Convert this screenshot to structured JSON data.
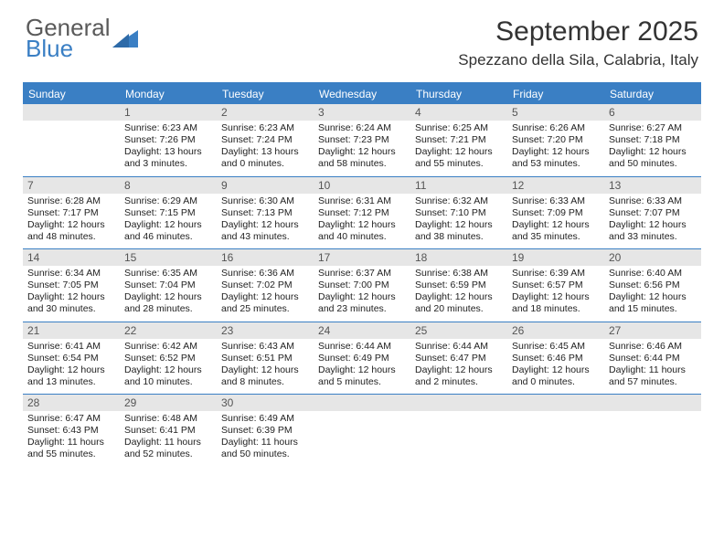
{
  "logo": {
    "word1": "General",
    "word2": "Blue"
  },
  "colors": {
    "brand_blue": "#3a7fc4",
    "header_gray": "#e6e6e6",
    "text": "#222222",
    "logo_gray": "#5a5a5a"
  },
  "title": "September 2025",
  "location": "Spezzano della Sila, Calabria, Italy",
  "weekdays": [
    "Sunday",
    "Monday",
    "Tuesday",
    "Wednesday",
    "Thursday",
    "Friday",
    "Saturday"
  ],
  "weeks": [
    [
      {
        "n": "",
        "sr": "",
        "ss": "",
        "dl": ""
      },
      {
        "n": "1",
        "sr": "Sunrise: 6:23 AM",
        "ss": "Sunset: 7:26 PM",
        "dl": "Daylight: 13 hours and 3 minutes."
      },
      {
        "n": "2",
        "sr": "Sunrise: 6:23 AM",
        "ss": "Sunset: 7:24 PM",
        "dl": "Daylight: 13 hours and 0 minutes."
      },
      {
        "n": "3",
        "sr": "Sunrise: 6:24 AM",
        "ss": "Sunset: 7:23 PM",
        "dl": "Daylight: 12 hours and 58 minutes."
      },
      {
        "n": "4",
        "sr": "Sunrise: 6:25 AM",
        "ss": "Sunset: 7:21 PM",
        "dl": "Daylight: 12 hours and 55 minutes."
      },
      {
        "n": "5",
        "sr": "Sunrise: 6:26 AM",
        "ss": "Sunset: 7:20 PM",
        "dl": "Daylight: 12 hours and 53 minutes."
      },
      {
        "n": "6",
        "sr": "Sunrise: 6:27 AM",
        "ss": "Sunset: 7:18 PM",
        "dl": "Daylight: 12 hours and 50 minutes."
      }
    ],
    [
      {
        "n": "7",
        "sr": "Sunrise: 6:28 AM",
        "ss": "Sunset: 7:17 PM",
        "dl": "Daylight: 12 hours and 48 minutes."
      },
      {
        "n": "8",
        "sr": "Sunrise: 6:29 AM",
        "ss": "Sunset: 7:15 PM",
        "dl": "Daylight: 12 hours and 46 minutes."
      },
      {
        "n": "9",
        "sr": "Sunrise: 6:30 AM",
        "ss": "Sunset: 7:13 PM",
        "dl": "Daylight: 12 hours and 43 minutes."
      },
      {
        "n": "10",
        "sr": "Sunrise: 6:31 AM",
        "ss": "Sunset: 7:12 PM",
        "dl": "Daylight: 12 hours and 40 minutes."
      },
      {
        "n": "11",
        "sr": "Sunrise: 6:32 AM",
        "ss": "Sunset: 7:10 PM",
        "dl": "Daylight: 12 hours and 38 minutes."
      },
      {
        "n": "12",
        "sr": "Sunrise: 6:33 AM",
        "ss": "Sunset: 7:09 PM",
        "dl": "Daylight: 12 hours and 35 minutes."
      },
      {
        "n": "13",
        "sr": "Sunrise: 6:33 AM",
        "ss": "Sunset: 7:07 PM",
        "dl": "Daylight: 12 hours and 33 minutes."
      }
    ],
    [
      {
        "n": "14",
        "sr": "Sunrise: 6:34 AM",
        "ss": "Sunset: 7:05 PM",
        "dl": "Daylight: 12 hours and 30 minutes."
      },
      {
        "n": "15",
        "sr": "Sunrise: 6:35 AM",
        "ss": "Sunset: 7:04 PM",
        "dl": "Daylight: 12 hours and 28 minutes."
      },
      {
        "n": "16",
        "sr": "Sunrise: 6:36 AM",
        "ss": "Sunset: 7:02 PM",
        "dl": "Daylight: 12 hours and 25 minutes."
      },
      {
        "n": "17",
        "sr": "Sunrise: 6:37 AM",
        "ss": "Sunset: 7:00 PM",
        "dl": "Daylight: 12 hours and 23 minutes."
      },
      {
        "n": "18",
        "sr": "Sunrise: 6:38 AM",
        "ss": "Sunset: 6:59 PM",
        "dl": "Daylight: 12 hours and 20 minutes."
      },
      {
        "n": "19",
        "sr": "Sunrise: 6:39 AM",
        "ss": "Sunset: 6:57 PM",
        "dl": "Daylight: 12 hours and 18 minutes."
      },
      {
        "n": "20",
        "sr": "Sunrise: 6:40 AM",
        "ss": "Sunset: 6:56 PM",
        "dl": "Daylight: 12 hours and 15 minutes."
      }
    ],
    [
      {
        "n": "21",
        "sr": "Sunrise: 6:41 AM",
        "ss": "Sunset: 6:54 PM",
        "dl": "Daylight: 12 hours and 13 minutes."
      },
      {
        "n": "22",
        "sr": "Sunrise: 6:42 AM",
        "ss": "Sunset: 6:52 PM",
        "dl": "Daylight: 12 hours and 10 minutes."
      },
      {
        "n": "23",
        "sr": "Sunrise: 6:43 AM",
        "ss": "Sunset: 6:51 PM",
        "dl": "Daylight: 12 hours and 8 minutes."
      },
      {
        "n": "24",
        "sr": "Sunrise: 6:44 AM",
        "ss": "Sunset: 6:49 PM",
        "dl": "Daylight: 12 hours and 5 minutes."
      },
      {
        "n": "25",
        "sr": "Sunrise: 6:44 AM",
        "ss": "Sunset: 6:47 PM",
        "dl": "Daylight: 12 hours and 2 minutes."
      },
      {
        "n": "26",
        "sr": "Sunrise: 6:45 AM",
        "ss": "Sunset: 6:46 PM",
        "dl": "Daylight: 12 hours and 0 minutes."
      },
      {
        "n": "27",
        "sr": "Sunrise: 6:46 AM",
        "ss": "Sunset: 6:44 PM",
        "dl": "Daylight: 11 hours and 57 minutes."
      }
    ],
    [
      {
        "n": "28",
        "sr": "Sunrise: 6:47 AM",
        "ss": "Sunset: 6:43 PM",
        "dl": "Daylight: 11 hours and 55 minutes."
      },
      {
        "n": "29",
        "sr": "Sunrise: 6:48 AM",
        "ss": "Sunset: 6:41 PM",
        "dl": "Daylight: 11 hours and 52 minutes."
      },
      {
        "n": "30",
        "sr": "Sunrise: 6:49 AM",
        "ss": "Sunset: 6:39 PM",
        "dl": "Daylight: 11 hours and 50 minutes."
      },
      {
        "n": "",
        "sr": "",
        "ss": "",
        "dl": ""
      },
      {
        "n": "",
        "sr": "",
        "ss": "",
        "dl": ""
      },
      {
        "n": "",
        "sr": "",
        "ss": "",
        "dl": ""
      },
      {
        "n": "",
        "sr": "",
        "ss": "",
        "dl": ""
      }
    ]
  ]
}
